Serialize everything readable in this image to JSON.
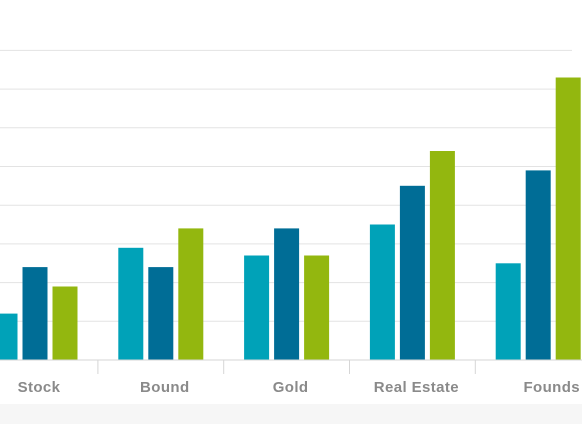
{
  "chart_data": {
    "type": "bar",
    "categories": [
      "Stock",
      "Bound",
      "Gold",
      "Real Estate",
      "Founds"
    ],
    "series": [
      {
        "values": [
          12,
          29,
          27,
          35,
          25
        ]
      },
      {
        "values": [
          24,
          24,
          34,
          45,
          49
        ]
      },
      {
        "values": [
          19,
          34,
          27,
          54,
          73
        ]
      }
    ],
    "ylim": [
      0,
      80
    ],
    "grid": true,
    "legend": "none",
    "xlabel": "",
    "ylabel": ""
  },
  "colors": {
    "series": [
      "#00a2b8",
      "#006d96",
      "#93b70f"
    ],
    "grid": "#e3e3e3",
    "axis": "#d6d6d6",
    "tick_label": "#8a8a8a"
  }
}
